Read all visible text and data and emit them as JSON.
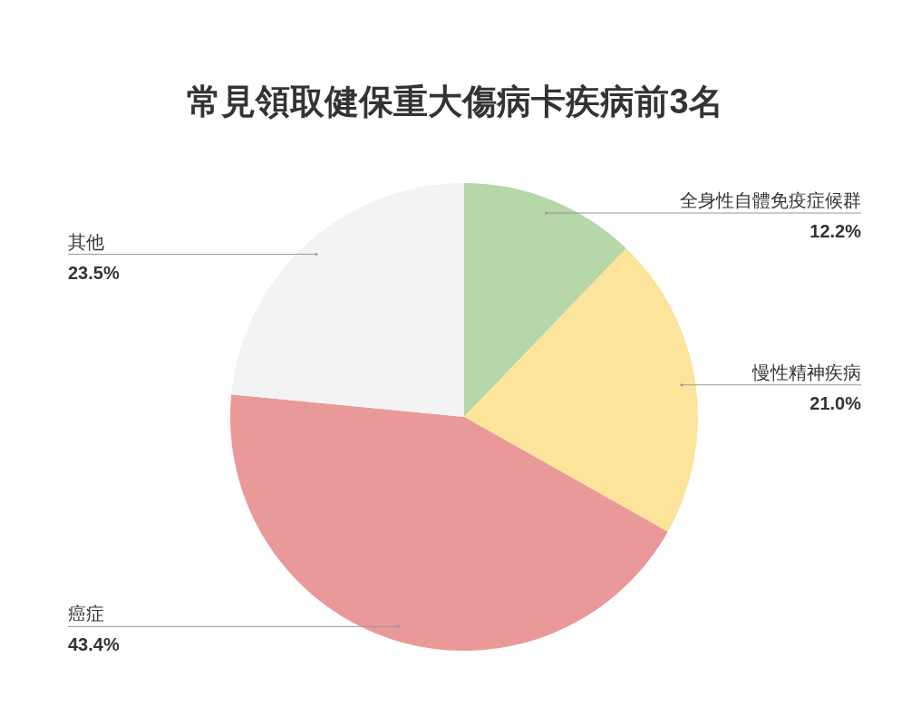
{
  "chart_data": {
    "type": "pie",
    "title": "常見領取健保重大傷病卡疾病前3名",
    "categories": [
      "全身性自體免疫症候群",
      "慢性精神疾病",
      "癌症",
      "其他"
    ],
    "values": [
      12.2,
      21.0,
      43.4,
      23.5
    ],
    "value_labels": [
      "12.2%",
      "21.0%",
      "43.4%",
      "23.5%"
    ],
    "colors": [
      "#b6d7a8",
      "#fde49b",
      "#ea9999",
      "#f3f3f3"
    ]
  }
}
